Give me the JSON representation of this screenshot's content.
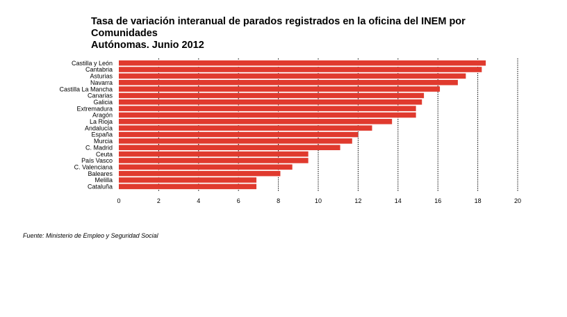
{
  "chart_data": {
    "type": "bar",
    "orientation": "horizontal",
    "title": "Tasa de variación interanual de parados registrados en la oficina del INEM por Comunidades Autónomas. Junio 2012",
    "title_lines": [
      "Tasa de variación interanual de parados registrados en la oficina del INEM por Comunidades",
      "Autónomas. Junio 2012"
    ],
    "categories": [
      "Castilla y León",
      "Cantabria",
      "Asturias",
      "Navarra",
      "Castilla La Mancha",
      "Canarias",
      "Galicia",
      "Extremadura",
      "Aragón",
      "La Rioja",
      "Andalucía",
      "España",
      "Murcia",
      "C. Madrid",
      "Ceuta",
      "País Vasco",
      "C. Valenciana",
      "Baleares",
      "Melilla",
      "Cataluña"
    ],
    "values": [
      18.4,
      18.2,
      17.4,
      17.0,
      16.1,
      15.3,
      15.2,
      14.9,
      14.9,
      13.7,
      12.7,
      12.0,
      11.7,
      11.1,
      9.5,
      9.5,
      8.7,
      8.1,
      6.9,
      6.9
    ],
    "xlim": [
      0,
      20
    ],
    "xticks": [
      "0",
      "2",
      "4",
      "6",
      "8",
      "10",
      "12",
      "14",
      "16",
      "18",
      "20"
    ],
    "xlabel": "",
    "ylabel": "",
    "grid": "vertical dotted",
    "legend": "none",
    "bar_color": "#e03a2e"
  },
  "source": "Fuente: Ministerio de Empleo y Seguridad Social"
}
